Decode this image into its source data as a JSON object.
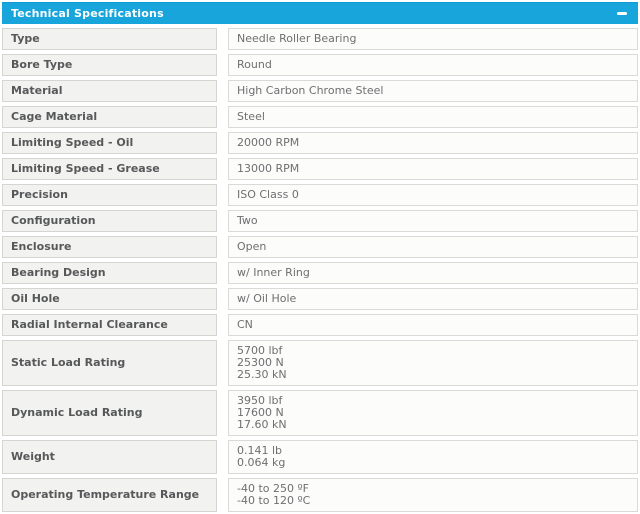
{
  "panel": {
    "title": "Technical Specifications",
    "collapse_icon": "minus",
    "header_color": "#17a5dc",
    "header_text_color": "#ffffff"
  },
  "colors": {
    "label_cell_bg": "#f2f2f0",
    "value_cell_bg": "#fcfcfb",
    "cell_border": "#d6d5d2",
    "label_text": "#57585a",
    "value_text": "#6e6f71"
  },
  "spec_table": {
    "rows": [
      {
        "label": "Type",
        "values": [
          "Needle Roller Bearing"
        ]
      },
      {
        "label": "Bore Type",
        "values": [
          "Round"
        ]
      },
      {
        "label": "Material",
        "values": [
          "High Carbon Chrome Steel"
        ]
      },
      {
        "label": "Cage Material",
        "values": [
          "Steel"
        ]
      },
      {
        "label": "Limiting Speed - Oil",
        "values": [
          "20000 RPM"
        ]
      },
      {
        "label": "Limiting Speed - Grease",
        "values": [
          "13000 RPM"
        ]
      },
      {
        "label": "Precision",
        "values": [
          "ISO Class 0"
        ]
      },
      {
        "label": "Configuration",
        "values": [
          "Two"
        ]
      },
      {
        "label": "Enclosure",
        "values": [
          "Open"
        ]
      },
      {
        "label": "Bearing Design",
        "values": [
          "w/ Inner Ring"
        ]
      },
      {
        "label": "Oil Hole",
        "values": [
          "w/ Oil Hole"
        ]
      },
      {
        "label": "Radial Internal Clearance",
        "values": [
          "CN"
        ]
      },
      {
        "label": "Static Load Rating",
        "values": [
          "5700 lbf",
          "25300 N",
          "25.30 kN"
        ]
      },
      {
        "label": "Dynamic Load Rating",
        "values": [
          "3950 lbf",
          "17600 N",
          "17.60 kN"
        ]
      },
      {
        "label": "Weight",
        "values": [
          "0.141 lb",
          "0.064 kg"
        ]
      },
      {
        "label": "Operating Temperature Range",
        "values": [
          "-40 to 250 ºF",
          "-40 to 120 ºC"
        ]
      }
    ]
  }
}
